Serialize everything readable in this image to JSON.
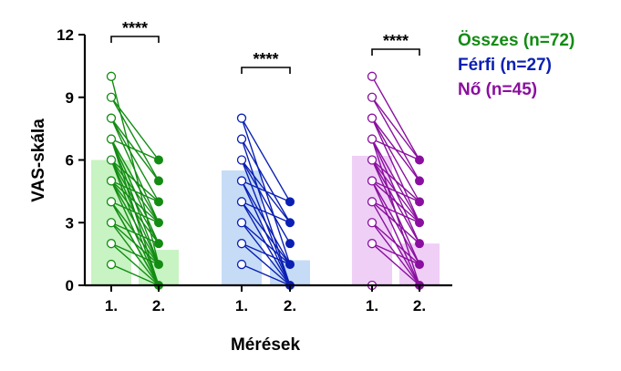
{
  "chart_data": {
    "type": "bar",
    "ylabel": "VAS-skála",
    "xlabel": "Mérések",
    "ylim": [
      0,
      12
    ],
    "yticks": [
      "0",
      "3",
      "6",
      "9",
      "12"
    ],
    "xtick_labels": [
      "1.",
      "2."
    ],
    "groups": [
      {
        "name": "Összes (n=72)",
        "color": "#128c12",
        "bar_fill": "#c8f3c3",
        "bar_values": [
          6.0,
          1.7
        ],
        "significance": "****",
        "pairs": [
          [
            10,
            1
          ],
          [
            9,
            6
          ],
          [
            9,
            5
          ],
          [
            8,
            5
          ],
          [
            8,
            4
          ],
          [
            8,
            3
          ],
          [
            7,
            6
          ],
          [
            7,
            2
          ],
          [
            7,
            0
          ],
          [
            7,
            1
          ],
          [
            7,
            3
          ],
          [
            6,
            4
          ],
          [
            6,
            3
          ],
          [
            6,
            0
          ],
          [
            6,
            2
          ],
          [
            6,
            1
          ],
          [
            5,
            0
          ],
          [
            5,
            4
          ],
          [
            5,
            3
          ],
          [
            5,
            1
          ],
          [
            5,
            2
          ],
          [
            4,
            0
          ],
          [
            4,
            0
          ],
          [
            4,
            3
          ],
          [
            4,
            1
          ],
          [
            3,
            0
          ],
          [
            3,
            1
          ],
          [
            3,
            2
          ],
          [
            2,
            0
          ],
          [
            2,
            1
          ],
          [
            1,
            0
          ]
        ]
      },
      {
        "name": "Férfi (n=27)",
        "color": "#0a1fb4",
        "bar_fill": "#c6dcf6",
        "bar_values": [
          5.5,
          1.2
        ],
        "significance": "****",
        "pairs": [
          [
            8,
            4
          ],
          [
            8,
            1
          ],
          [
            7,
            3
          ],
          [
            7,
            0
          ],
          [
            6,
            3
          ],
          [
            6,
            2
          ],
          [
            6,
            0
          ],
          [
            5,
            1
          ],
          [
            5,
            0
          ],
          [
            5,
            4
          ],
          [
            4,
            0
          ],
          [
            4,
            1
          ],
          [
            4,
            3
          ],
          [
            3,
            0
          ],
          [
            3,
            1
          ],
          [
            2,
            0
          ],
          [
            2,
            1
          ],
          [
            1,
            0
          ]
        ]
      },
      {
        "name": "Nő (n=45)",
        "color": "#8a0f9f",
        "bar_fill": "#efcff6",
        "bar_values": [
          6.2,
          2.0
        ],
        "significance": "****",
        "pairs": [
          [
            10,
            6
          ],
          [
            9,
            6
          ],
          [
            9,
            5
          ],
          [
            8,
            4
          ],
          [
            8,
            5
          ],
          [
            8,
            3
          ],
          [
            7,
            6
          ],
          [
            7,
            2
          ],
          [
            7,
            0
          ],
          [
            7,
            3
          ],
          [
            6,
            4
          ],
          [
            6,
            3
          ],
          [
            6,
            1
          ],
          [
            6,
            2
          ],
          [
            5,
            1
          ],
          [
            5,
            4
          ],
          [
            5,
            0
          ],
          [
            5,
            3
          ],
          [
            4,
            0
          ],
          [
            4,
            2
          ],
          [
            4,
            3
          ],
          [
            3,
            0
          ],
          [
            3,
            1
          ],
          [
            2,
            0
          ],
          [
            2,
            1
          ],
          [
            0,
            0
          ]
        ]
      }
    ]
  }
}
